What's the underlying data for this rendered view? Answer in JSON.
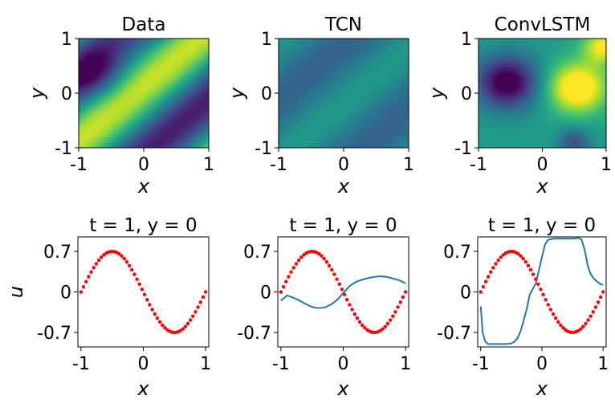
{
  "chart_data": [
    {
      "type": "heatmap",
      "title": "Data",
      "xlabel": "x",
      "ylabel": "y",
      "xlim": [
        -1,
        1
      ],
      "ylim": [
        -1,
        1
      ],
      "xticks": [
        "-1",
        "0",
        "1"
      ],
      "yticks": [
        "-1",
        "0",
        "1"
      ],
      "colormap": "viridis",
      "field": "u(x, y) at t = 1: diagonal band pattern, low (dark purple) band through (-0.6, 0.2) to (-0.1, -0.8), high (yellow) band through (0.6, 0.25)"
    },
    {
      "type": "heatmap",
      "title": "TCN",
      "xlabel": "x",
      "ylabel": "",
      "xlim": [
        -1,
        1
      ],
      "ylim": [
        -1,
        1
      ],
      "xticks": [
        "-1",
        "0",
        "1"
      ],
      "yticks": [
        "-1",
        "0",
        "1"
      ],
      "colormap": "viridis",
      "field": "low-contrast diagonal stripes (teal/blue-green)"
    },
    {
      "type": "heatmap",
      "title": "ConvLSTM",
      "xlabel": "x",
      "ylabel": "",
      "xlim": [
        -1,
        1
      ],
      "ylim": [
        -1,
        1
      ],
      "xticks": [
        "-1",
        "0",
        "1"
      ],
      "yticks": [
        "-1",
        "0",
        "1"
      ],
      "colormap": "viridis",
      "field": "saturated blobs: dark purple region upper-left, yellow region right of center"
    },
    {
      "type": "line",
      "title": "t = 1, y = 0",
      "xlabel": "x",
      "ylabel": "u",
      "xlim": [
        -1.05,
        1.05
      ],
      "ylim": [
        -0.95,
        0.95
      ],
      "xticks": [
        "-1",
        "0",
        "1"
      ],
      "yticks": [
        {
          "value": 0.7,
          "label": "0.7"
        },
        {
          "value": 0,
          "label": "0"
        },
        {
          "value": -0.7,
          "label": "-0.7"
        }
      ],
      "series": [
        {
          "style": "red-dots",
          "color": "#ff0000",
          "x": "linspace(-1, 1, 50)",
          "y": "-0.7*sin(pi*x)"
        }
      ]
    },
    {
      "type": "line",
      "title": "t = 1, y = 0",
      "xlabel": "x",
      "ylabel": "",
      "xlim": [
        -1.05,
        1.05
      ],
      "ylim": [
        -0.95,
        0.95
      ],
      "xticks": [
        "-1",
        "0",
        "1"
      ],
      "yticks": [
        {
          "value": 0.7,
          "label": "0.7"
        },
        {
          "value": 0,
          "label": "0"
        },
        {
          "value": -0.7,
          "label": "-0.7"
        }
      ],
      "series": [
        {
          "style": "red-dots",
          "color": "#ff0000",
          "x": "linspace(-1, 1, 50)",
          "y": "-0.7*sin(pi*x)"
        },
        {
          "style": "blue-line",
          "color": "#1f77b4",
          "x": [
            -1.0,
            -0.9,
            -0.8,
            -0.7,
            -0.6,
            -0.5,
            -0.4,
            -0.3,
            -0.2,
            -0.1,
            0.0,
            0.1,
            0.2,
            0.3,
            0.4,
            0.5,
            0.6,
            0.7,
            0.8,
            0.9,
            1.0
          ],
          "y": [
            -0.15,
            -0.06,
            -0.1,
            -0.15,
            -0.21,
            -0.26,
            -0.28,
            -0.27,
            -0.22,
            -0.14,
            -0.02,
            0.1,
            0.17,
            0.21,
            0.24,
            0.26,
            0.27,
            0.26,
            0.23,
            0.2,
            0.15
          ]
        }
      ]
    },
    {
      "type": "line",
      "title": "t = 1, y = 0",
      "xlabel": "x",
      "ylabel": "",
      "xlim": [
        -1.05,
        1.05
      ],
      "ylim": [
        -0.95,
        0.95
      ],
      "xticks": [
        "-1",
        "0",
        "1"
      ],
      "yticks": [
        {
          "value": 0.7,
          "label": "0.7"
        },
        {
          "value": 0,
          "label": "0"
        },
        {
          "value": -0.7,
          "label": "-0.7"
        }
      ],
      "series": [
        {
          "style": "red-dots",
          "color": "#ff0000",
          "x": "linspace(-1, 1, 50)",
          "y": "-0.7*sin(pi*x)"
        },
        {
          "style": "blue-line",
          "color": "#1f77b4",
          "x": [
            -1.0,
            -0.97,
            -0.93,
            -0.88,
            -0.8,
            -0.7,
            -0.6,
            -0.5,
            -0.45,
            -0.4,
            -0.35,
            -0.3,
            -0.25,
            -0.2,
            -0.1,
            0.0,
            0.05,
            0.1,
            0.2,
            0.3,
            0.4,
            0.5,
            0.6,
            0.65,
            0.7,
            0.75,
            0.8,
            0.85,
            0.9,
            0.95,
            1.0
          ],
          "y": [
            -0.25,
            -0.7,
            -0.85,
            -0.9,
            -0.9,
            -0.9,
            -0.9,
            -0.89,
            -0.86,
            -0.8,
            -0.68,
            -0.5,
            -0.3,
            -0.05,
            0.15,
            0.6,
            0.82,
            0.9,
            0.92,
            0.92,
            0.92,
            0.92,
            0.93,
            0.9,
            0.72,
            0.45,
            0.3,
            0.23,
            0.18,
            0.14,
            0.12
          ]
        }
      ]
    }
  ]
}
